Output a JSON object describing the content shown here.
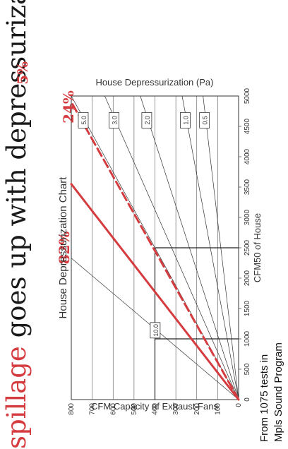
{
  "headline": {
    "accent": "spillage",
    "rest": " goes up with depressurization"
  },
  "footnote": {
    "line1": "From 1075 tests in",
    "line2": "Mpls Sound Program"
  },
  "colors": {
    "accent": "#d53c40",
    "ink": "#333333",
    "grid": "#555555"
  },
  "chart_data": {
    "type": "line",
    "title": "House Depressurization Chart",
    "xlabel": "CFM50 of House",
    "ylabel": "CFM Capacity of Exhaust Fans",
    "y2label": "House Depressurization (Pa)",
    "xlim": [
      0,
      5000
    ],
    "ylim": [
      0,
      800
    ],
    "xticks": [
      0,
      500,
      1000,
      1500,
      2000,
      2500,
      3000,
      3500,
      4000,
      4500,
      5000
    ],
    "yticks": [
      0,
      100,
      200,
      300,
      400,
      500,
      600,
      700,
      800
    ],
    "grid": true,
    "pressure_lines": [
      {
        "label": "10.0",
        "end": [
          2330,
          800
        ]
      },
      {
        "label": "5.0",
        "end": [
          5000,
          800
        ]
      },
      {
        "label": "3.0",
        "end": [
          5000,
          640
        ]
      },
      {
        "label": "2.0",
        "end": [
          5000,
          470
        ]
      },
      {
        "label": "1.0",
        "end": [
          5000,
          270
        ]
      },
      {
        "label": "0.5",
        "end": [
          5000,
          170
        ]
      }
    ],
    "spillage_lines": [
      {
        "style": "solid",
        "end": [
          3550,
          800
        ]
      },
      {
        "style": "dashed",
        "end": [
          4900,
          800
        ]
      }
    ],
    "markers": [
      {
        "x": 1000,
        "y_from": 0,
        "y_to": 400
      },
      {
        "x": 2500,
        "y_from": 0,
        "y_to": 400
      }
    ],
    "marker_hline": {
      "y": 400,
      "x_from": 0,
      "x_to": 2500
    },
    "annotations": [
      {
        "text": "82%",
        "x": 2500,
        "y": 810
      },
      {
        "text": "24%",
        "x": 4820,
        "y": 790
      },
      {
        "text": "5%",
        "x": 5380,
        "y": 1010
      }
    ]
  }
}
